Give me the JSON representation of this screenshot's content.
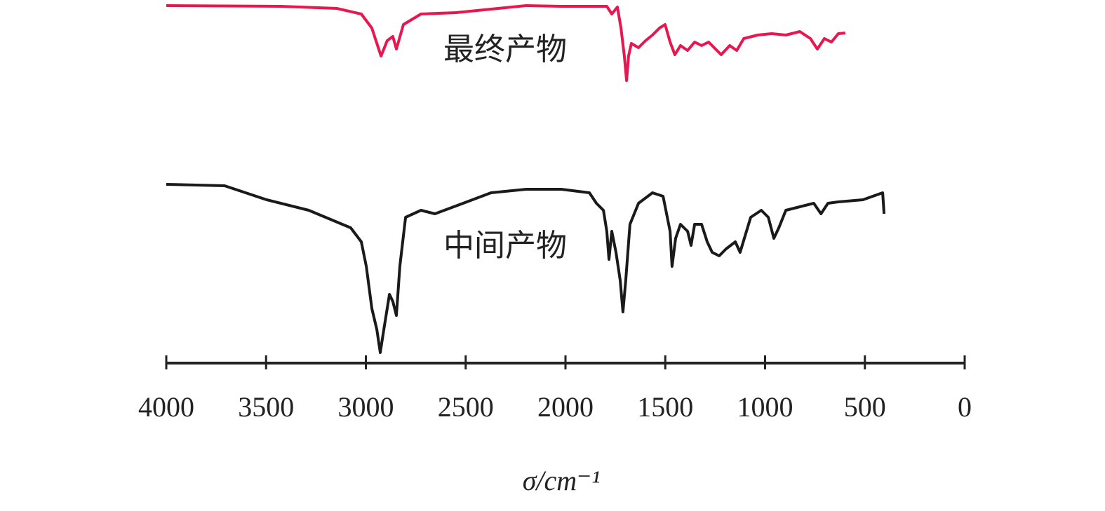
{
  "chart_data": {
    "type": "line",
    "xlabel": "σ/cm⁻¹",
    "xlim": [
      4000,
      0
    ],
    "xticks": [
      4000,
      3500,
      3000,
      2500,
      2000,
      1500,
      1000,
      500,
      0
    ],
    "ylim": [
      0,
      104
    ],
    "series": [
      {
        "name": "最终产物",
        "color": "#e8174f",
        "x": [
          4000,
          3427,
          3146,
          3023,
          2970,
          2924,
          2893,
          2865,
          2847,
          2812,
          2724,
          2548,
          2197,
          2021,
          1793,
          1768,
          1740,
          1722,
          1705,
          1694,
          1684,
          1670,
          1634,
          1599,
          1564,
          1529,
          1501,
          1476,
          1452,
          1424,
          1388,
          1353,
          1318,
          1283,
          1248,
          1220,
          1177,
          1142,
          1107,
          1037,
          967,
          896,
          826,
          773,
          738,
          703,
          668,
          633,
          598
        ],
        "values": [
          102,
          101.8,
          101.2,
          99.6,
          95.6,
          87.6,
          92,
          93.2,
          89.6,
          96.6,
          99.6,
          100,
          102,
          101.8,
          101.8,
          99.6,
          101.6,
          95.6,
          87.6,
          80.6,
          87.6,
          91.2,
          90,
          92,
          93.6,
          95.6,
          96.6,
          91.6,
          88,
          90.6,
          89.2,
          91.6,
          90.6,
          91.6,
          89.6,
          88,
          90.6,
          89.2,
          92.6,
          93.6,
          94,
          93.6,
          94.6,
          92.6,
          89.6,
          92.6,
          91.6,
          94,
          94.2
        ]
      },
      {
        "name": "中间产物",
        "color": "#1a1a1a",
        "x": [
          4000,
          3708,
          3497,
          3286,
          3076,
          3023,
          2998,
          2970,
          2945,
          2928,
          2910,
          2882,
          2865,
          2847,
          2830,
          2801,
          2724,
          2654,
          2513,
          2373,
          2197,
          2021,
          1880,
          1845,
          1810,
          1793,
          1782,
          1768,
          1747,
          1726,
          1712,
          1698,
          1677,
          1634,
          1564,
          1511,
          1476,
          1466,
          1448,
          1424,
          1388,
          1371,
          1353,
          1318,
          1290,
          1265,
          1230,
          1195,
          1149,
          1125,
          1072,
          1019,
          984,
          956,
          931,
          896,
          826,
          756,
          720,
          685,
          633,
          510,
          411,
          404
        ],
        "values": [
          51,
          50.6,
          46.6,
          43.6,
          38.6,
          34.6,
          27.6,
          15.6,
          9.6,
          3,
          9.6,
          19.6,
          17.6,
          13.6,
          27.6,
          41.6,
          43.6,
          42.6,
          45.6,
          48.6,
          49.6,
          49.6,
          48.6,
          45.6,
          43.6,
          37.6,
          29.6,
          37.6,
          31.6,
          23.6,
          14.6,
          23.6,
          39.6,
          45.6,
          48.6,
          47.6,
          37.6,
          27.6,
          35.6,
          39.6,
          37.6,
          33.6,
          39.6,
          39.6,
          34.6,
          31.6,
          30.6,
          32.6,
          34.6,
          31.6,
          41.6,
          43.6,
          41.6,
          35.6,
          38.6,
          43.6,
          44.6,
          45.6,
          42.6,
          45.6,
          46,
          46.6,
          48.6,
          42.6
        ]
      }
    ]
  }
}
